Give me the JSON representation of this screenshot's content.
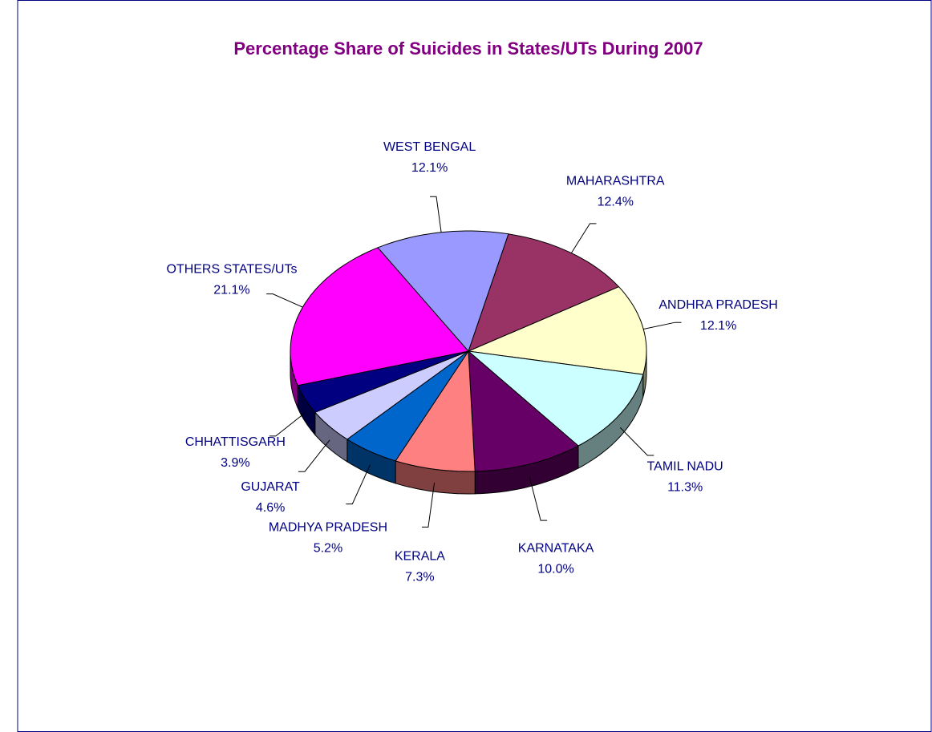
{
  "chart_data": {
    "type": "pie",
    "title": "Percentage Share of Suicides in States/UTs During 2007",
    "categories": [
      "MAHARASHTRA",
      "ANDHRA PRADESH",
      "TAMIL NADU",
      "KARNATAKA",
      "KERALA",
      "MADHYA PRADESH",
      "GUJARAT",
      "CHHATTISGARH",
      "OTHERS STATES/UTs",
      "WEST BENGAL"
    ],
    "values": [
      12.4,
      12.1,
      11.3,
      10.0,
      7.3,
      5.2,
      4.6,
      3.9,
      21.1,
      12.1
    ],
    "value_labels": [
      "12.4%",
      "12.1%",
      "11.3%",
      "10.0%",
      "7.3%",
      "5.2%",
      "4.6%",
      "3.9%",
      "21.1%",
      "12.1%"
    ],
    "colors": [
      "#993366",
      "#ffffcc",
      "#ccffff",
      "#660066",
      "#ff8080",
      "#0066cc",
      "#ccccff",
      "#000080",
      "#ff00ff",
      "#9999ff"
    ]
  }
}
